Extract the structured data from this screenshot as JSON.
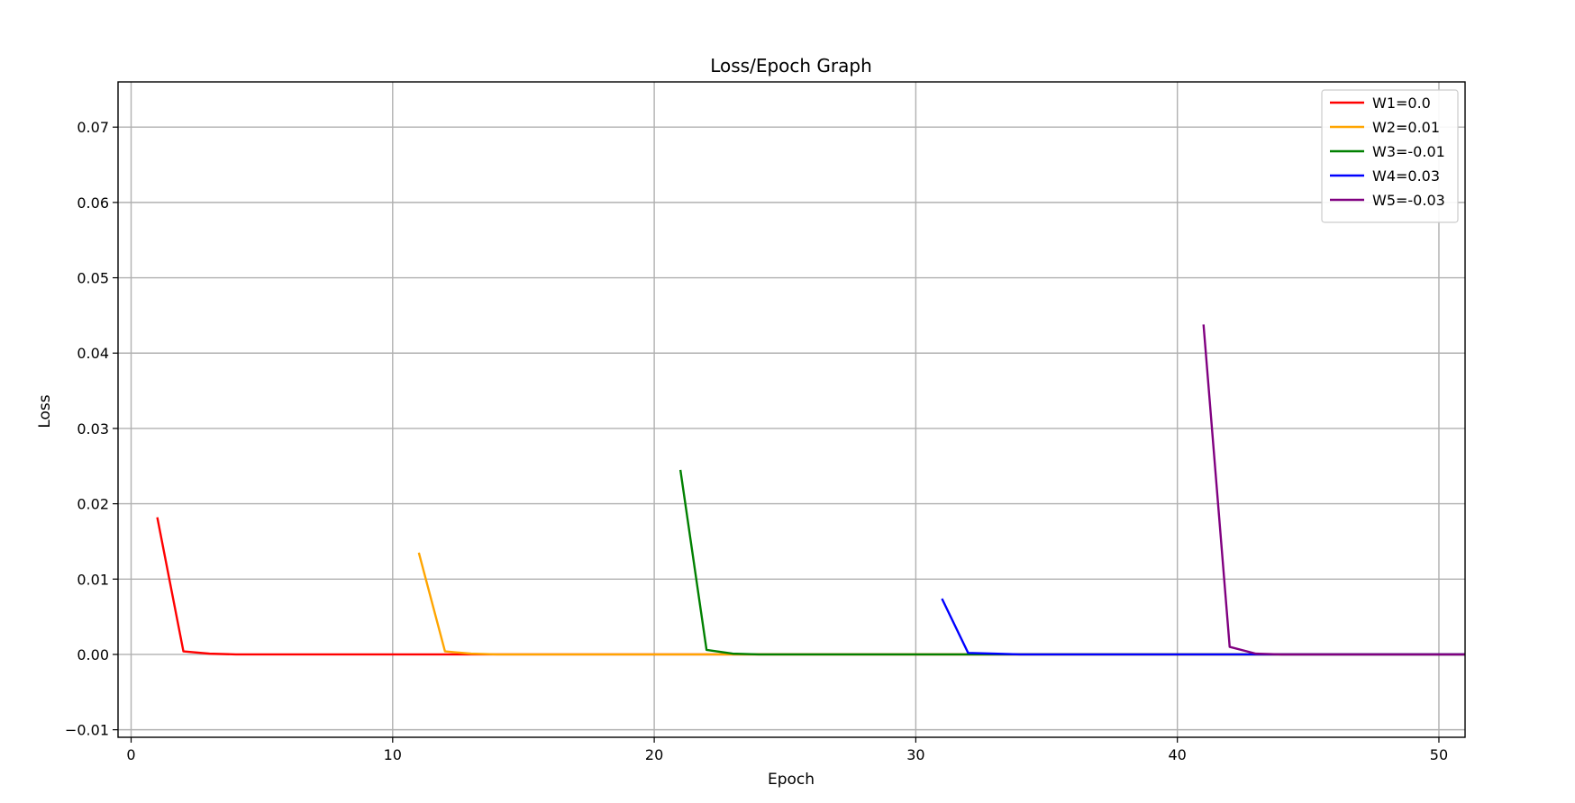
{
  "chart_data": {
    "type": "line",
    "title": "Loss/Epoch Graph",
    "xlabel": "Epoch",
    "ylabel": "Loss",
    "xlim": [
      -0.5,
      51
    ],
    "ylim": [
      -0.011,
      0.076
    ],
    "xticks": [
      0,
      10,
      20,
      30,
      40,
      50
    ],
    "yticks": [
      -0.01,
      0.0,
      0.01,
      0.02,
      0.03,
      0.04,
      0.05,
      0.06,
      0.07
    ],
    "ytick_labels": [
      "−0.01",
      "0.00",
      "0.01",
      "0.02",
      "0.03",
      "0.04",
      "0.05",
      "0.06",
      "0.07"
    ],
    "grid": true,
    "legend_position": "top-right",
    "series": [
      {
        "name": "W1=0.0",
        "color": "#ff0000",
        "x": [
          1,
          2,
          3,
          4,
          5,
          6,
          7,
          8,
          9,
          10,
          11,
          12,
          13,
          14,
          15,
          16,
          17,
          18,
          19,
          20,
          21,
          22,
          23,
          24,
          25,
          26,
          27,
          28,
          29,
          30,
          31,
          32,
          33,
          34,
          35,
          36,
          37,
          38,
          39,
          40,
          41,
          42,
          43,
          44,
          45,
          46,
          47,
          48,
          49,
          50,
          51
        ],
        "y": [
          0.0182,
          0.0004,
          0.0001,
          0,
          0,
          0,
          0,
          0,
          0,
          0,
          0,
          0,
          0,
          0,
          0,
          0,
          0,
          0,
          0,
          0,
          0,
          0,
          0,
          0,
          0,
          0,
          0,
          0,
          0,
          0,
          0,
          0,
          0,
          0,
          0,
          0,
          0,
          0,
          0,
          0,
          0,
          0,
          0,
          0,
          0,
          0,
          0,
          0,
          0,
          0,
          0
        ]
      },
      {
        "name": "W2=0.01",
        "color": "#ffa500",
        "x": [
          11,
          12,
          13,
          14,
          15,
          16,
          17,
          18,
          19,
          20,
          21,
          22,
          23,
          24,
          25,
          26,
          27,
          28,
          29,
          30,
          31,
          32,
          33,
          34,
          35,
          36,
          37,
          38,
          39,
          40,
          41,
          42,
          43,
          44,
          45,
          46,
          47,
          48,
          49,
          50,
          51
        ],
        "y": [
          0.0135,
          0.0004,
          0.0001,
          0,
          0,
          0,
          0,
          0,
          0,
          0,
          0,
          0,
          0,
          0,
          0,
          0,
          0,
          0,
          0,
          0,
          0,
          0,
          0,
          0,
          0,
          0,
          0,
          0,
          0,
          0,
          0,
          0,
          0,
          0,
          0,
          0,
          0,
          0,
          0,
          0,
          0
        ]
      },
      {
        "name": "W3=-0.01",
        "color": "#008000",
        "x": [
          21,
          22,
          23,
          24,
          25,
          26,
          27,
          28,
          29,
          30,
          31,
          32,
          33,
          34,
          35,
          36,
          37,
          38,
          39,
          40,
          41,
          42,
          43,
          44,
          45,
          46,
          47,
          48,
          49,
          50,
          51
        ],
        "y": [
          0.0245,
          0.0006,
          0.0001,
          0,
          0,
          0,
          0,
          0,
          0,
          0,
          0,
          0,
          0,
          0,
          0,
          0,
          0,
          0,
          0,
          0,
          0,
          0,
          0,
          0,
          0,
          0,
          0,
          0,
          0,
          0,
          0
        ]
      },
      {
        "name": "W4=0.03",
        "color": "#0000ff",
        "x": [
          31,
          32,
          33,
          34,
          35,
          36,
          37,
          38,
          39,
          40,
          41,
          42,
          43,
          44,
          45,
          46,
          47,
          48,
          49,
          50,
          51
        ],
        "y": [
          0.0074,
          0.0002,
          0.0001,
          0,
          0,
          0,
          0,
          0,
          0,
          0,
          0,
          0,
          0,
          0,
          0,
          0,
          0,
          0,
          0,
          0,
          0
        ]
      },
      {
        "name": "W5=-0.03",
        "color": "#800080",
        "x": [
          41,
          42,
          43,
          44,
          45,
          46,
          47,
          48,
          49,
          50,
          51
        ],
        "y": [
          0.0438,
          0.001,
          0.0001,
          0,
          0,
          0,
          0,
          0,
          0,
          0,
          0
        ]
      }
    ]
  }
}
